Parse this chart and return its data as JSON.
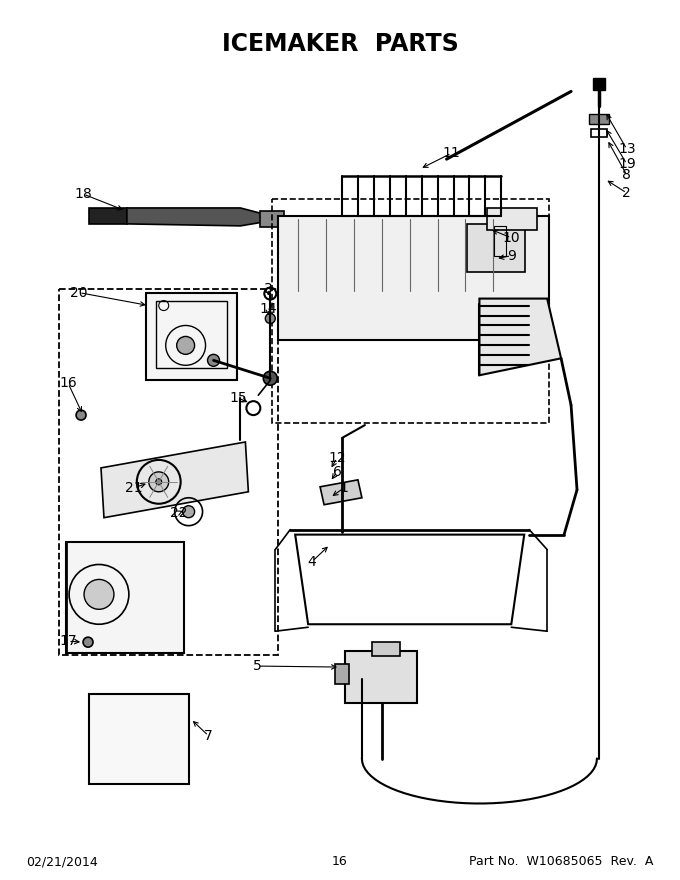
{
  "title": "ICEMAKER  PARTS",
  "title_fontsize": 17,
  "footer_left": "02/21/2014",
  "footer_center": "16",
  "footer_right": "Part No.  W10685065  Rev.  A",
  "footer_fontsize": 9,
  "bg_color": "#ffffff",
  "lc": "#000000",
  "fig_width": 6.8,
  "fig_height": 8.8,
  "dpi": 100
}
